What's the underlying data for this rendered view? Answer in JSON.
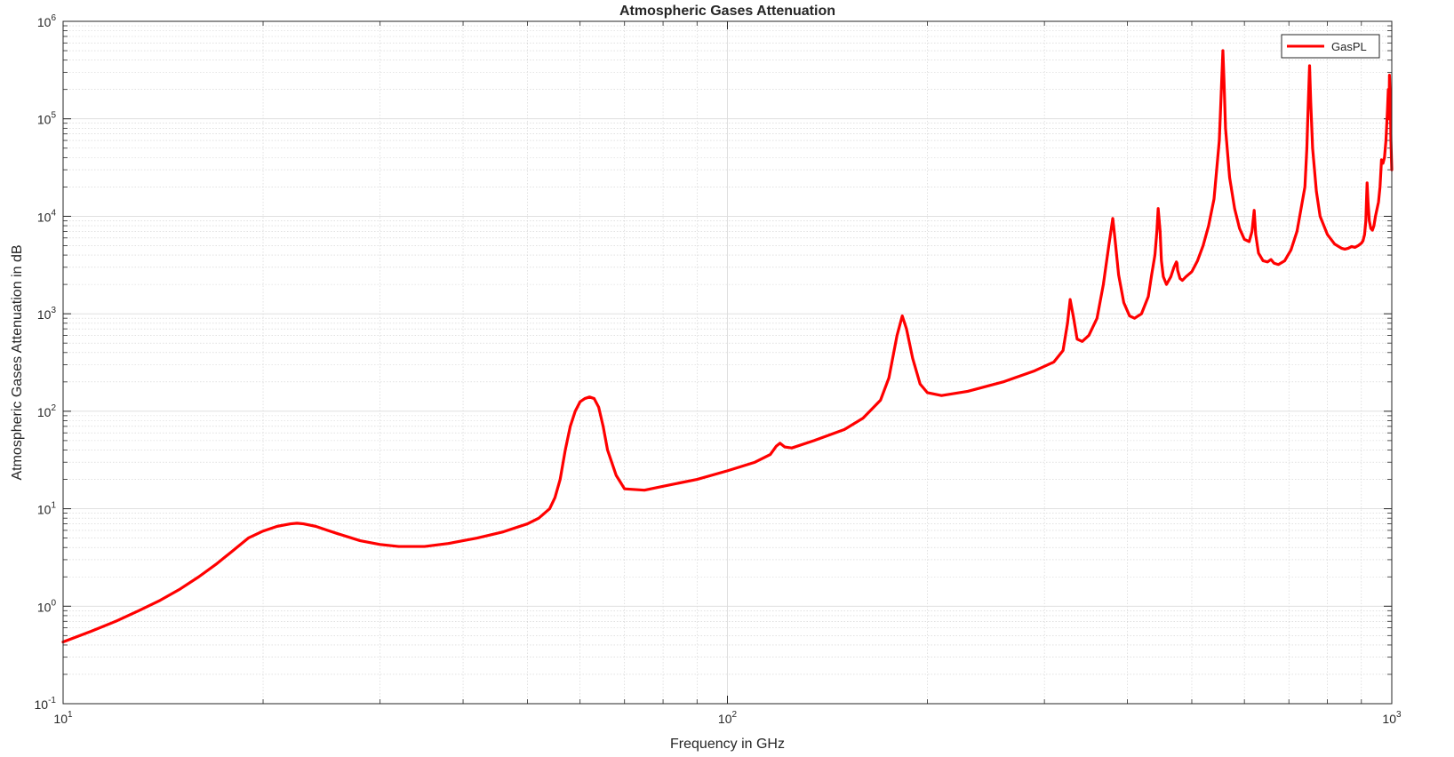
{
  "chart_data": {
    "type": "line",
    "title": "Atmospheric Gases Attenuation",
    "xlabel": "Frequency in GHz",
    "ylabel": "Atmospheric Gases Attenuation in dB",
    "xscale": "log",
    "yscale": "log",
    "xlim": [
      10,
      1000
    ],
    "ylim": [
      0.1,
      1000000
    ],
    "grid": true,
    "minor_grid": true,
    "legend_placement": "top-right",
    "x_ticks": [
      {
        "base": "10",
        "exp": "1",
        "value": 10
      },
      {
        "base": "10",
        "exp": "2",
        "value": 100
      },
      {
        "base": "10",
        "exp": "3",
        "value": 1000
      }
    ],
    "y_ticks": [
      {
        "base": "10",
        "exp": "-1",
        "value": 0.1
      },
      {
        "base": "10",
        "exp": "0",
        "value": 1
      },
      {
        "base": "10",
        "exp": "1",
        "value": 10
      },
      {
        "base": "10",
        "exp": "2",
        "value": 100
      },
      {
        "base": "10",
        "exp": "3",
        "value": 1000
      },
      {
        "base": "10",
        "exp": "4",
        "value": 10000
      },
      {
        "base": "10",
        "exp": "5",
        "value": 100000
      },
      {
        "base": "10",
        "exp": "6",
        "value": 1000000
      }
    ],
    "series": [
      {
        "name": "GasPL",
        "color": "#ff0000",
        "x": [
          10,
          11,
          12,
          13,
          14,
          15,
          16,
          17,
          18,
          19,
          20,
          21,
          22,
          22.5,
          23,
          24,
          25,
          26,
          28,
          30,
          32,
          35,
          38,
          42,
          46,
          50,
          52,
          54,
          55,
          56,
          57,
          58,
          59,
          60,
          61,
          62,
          63,
          64,
          65,
          66,
          68,
          70,
          75,
          80,
          90,
          100,
          110,
          116,
          118.5,
          120,
          122,
          125,
          135,
          150,
          160,
          170,
          175,
          180,
          183.3,
          186,
          190,
          195,
          200,
          210,
          230,
          260,
          290,
          310,
          320,
          325,
          328,
          332,
          336,
          342,
          350,
          360,
          368,
          375,
          380.2,
          383,
          388,
          395,
          403,
          410,
          420,
          430,
          435,
          440,
          443,
          445,
          448,
          450,
          453,
          458,
          465,
          470,
          474,
          475,
          476,
          480,
          484,
          490,
          500,
          510,
          520,
          530,
          540,
          545,
          550,
          553,
          556.9,
          559,
          562,
          570,
          580,
          590,
          600,
          610,
          616,
          620.7,
          624,
          630,
          640,
          650,
          658,
          665,
          675,
          690,
          705,
          720,
          740,
          745,
          748,
          752.03,
          755,
          760,
          770,
          780,
          800,
          820,
          840,
          850,
          860,
          870,
          880,
          890,
          900,
          905,
          910,
          914,
          916.2,
          918,
          921,
          925,
          930,
          935,
          940,
          945,
          955,
          960,
          965,
          970,
          975,
          980,
          985,
          988,
          990,
          992,
          995,
          997,
          1000
        ],
        "y": [
          0.43,
          0.55,
          0.7,
          0.9,
          1.15,
          1.5,
          2.0,
          2.7,
          3.7,
          5.0,
          5.9,
          6.6,
          7.0,
          7.1,
          7.0,
          6.6,
          6.0,
          5.5,
          4.7,
          4.3,
          4.1,
          4.1,
          4.4,
          5.0,
          5.8,
          7.0,
          8.0,
          10.0,
          13.0,
          20.0,
          40.0,
          70.0,
          100.0,
          125.0,
          135.0,
          140.0,
          135.0,
          110.0,
          70.0,
          40.0,
          22.0,
          16.0,
          15.5,
          17.0,
          20.0,
          24.5,
          30.0,
          36.0,
          44.0,
          47.0,
          43.0,
          42.0,
          50.0,
          65.0,
          85.0,
          130.0,
          220.0,
          600.0,
          950.0,
          700.0,
          350.0,
          190.0,
          155.0,
          145.0,
          160.0,
          200.0,
          260.0,
          320.0,
          420.0,
          800.0,
          1400.0,
          900.0,
          550.0,
          520.0,
          600.0,
          900.0,
          2000.0,
          5000.0,
          9500.0,
          6000.0,
          2500.0,
          1300.0,
          950.0,
          900.0,
          1000.0,
          1500.0,
          2500.0,
          4000.0,
          7000.0,
          12000.0,
          7000.0,
          3500.0,
          2400.0,
          2000.0,
          2400.0,
          3000.0,
          3400.0,
          3300.0,
          2800.0,
          2300.0,
          2200.0,
          2400.0,
          2700.0,
          3500.0,
          5000.0,
          8000.0,
          15000.0,
          30000.0,
          60000.0,
          150000.0,
          500000.0,
          250000.0,
          80000.0,
          25000.0,
          12000.0,
          7500.0,
          5800.0,
          5500.0,
          7000.0,
          11500.0,
          6500.0,
          4200.0,
          3500.0,
          3400.0,
          3600.0,
          3300.0,
          3200.0,
          3500.0,
          4500.0,
          7000.0,
          20000.0,
          50000.0,
          120000.0,
          350000.0,
          150000.0,
          50000.0,
          18000.0,
          10000.0,
          6500.0,
          5200.0,
          4700.0,
          4600.0,
          4700.0,
          4900.0,
          4800.0,
          5000.0,
          5300.0,
          5600.0,
          6500.0,
          9000.0,
          15000.0,
          22000.0,
          14000.0,
          9000.0,
          7500.0,
          7200.0,
          8000.0,
          10000.0,
          14000.0,
          20000.0,
          38000.0,
          35000.0,
          40000.0,
          60000.0,
          120000.0,
          200000.0,
          100000.0,
          280000.0,
          150000.0,
          60000.0,
          30000.0
        ]
      }
    ]
  }
}
